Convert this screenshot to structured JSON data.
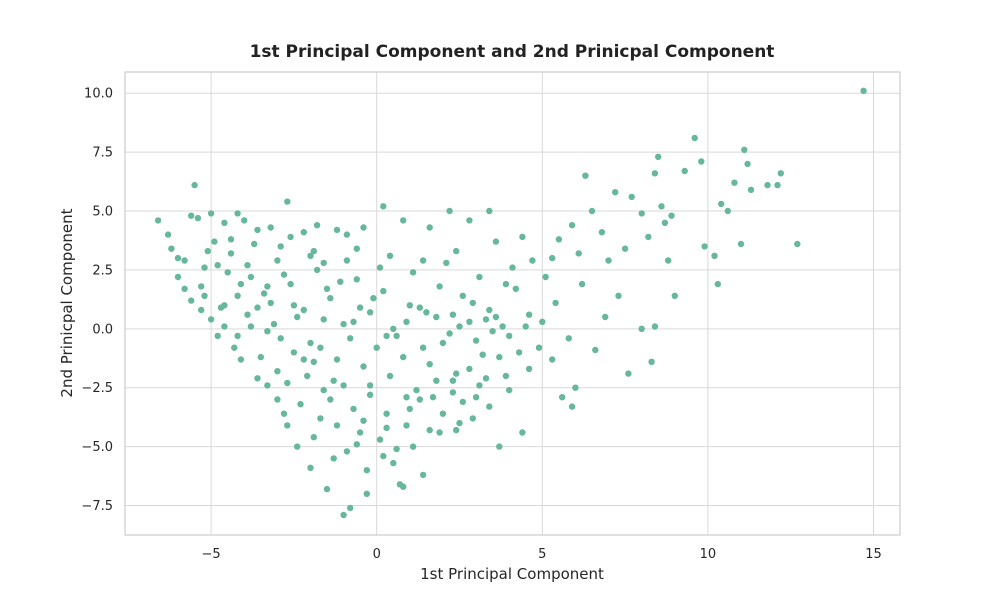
{
  "chart_data": {
    "type": "scatter",
    "title": "1st Principal Component and 2nd Prinicpal Component",
    "xlabel": "1st Principal Component",
    "ylabel": "2nd Prinicpal Component",
    "xlim": [
      -7.6,
      15.8
    ],
    "ylim": [
      -8.75,
      10.9
    ],
    "x_ticks": [
      -5,
      0,
      5,
      10,
      15
    ],
    "x_tick_labels": [
      "−5",
      "0",
      "5",
      "10",
      "15"
    ],
    "y_ticks": [
      -7.5,
      -5.0,
      -2.5,
      0.0,
      2.5,
      5.0,
      7.5,
      10.0
    ],
    "y_tick_labels": [
      "−7.5",
      "−5.0",
      "−2.5",
      "0.0",
      "2.5",
      "5.0",
      "7.5",
      "10.0"
    ],
    "grid": true,
    "legend": "none",
    "marker_color": "#66b79b",
    "series": [
      {
        "points": [
          [
            -6.6,
            4.6
          ],
          [
            -6.3,
            4.0
          ],
          [
            -6.2,
            3.4
          ],
          [
            -6.0,
            3.0
          ],
          [
            -5.5,
            6.1
          ],
          [
            -5.6,
            4.8
          ],
          [
            -5.4,
            4.7
          ],
          [
            -5.2,
            2.6
          ],
          [
            -5.0,
            4.9
          ],
          [
            -4.9,
            3.7
          ],
          [
            -4.6,
            4.5
          ],
          [
            -4.2,
            4.9
          ],
          [
            -4.0,
            4.6
          ],
          [
            -3.6,
            4.2
          ],
          [
            -3.2,
            4.3
          ],
          [
            -2.7,
            5.4
          ],
          [
            -2.2,
            4.1
          ],
          [
            -1.8,
            4.4
          ],
          [
            -1.2,
            4.2
          ],
          [
            -0.9,
            4.0
          ],
          [
            -0.4,
            4.3
          ],
          [
            0.2,
            5.2
          ],
          [
            0.8,
            4.6
          ],
          [
            1.6,
            4.3
          ],
          [
            2.2,
            5.0
          ],
          [
            2.8,
            4.6
          ],
          [
            3.4,
            5.0
          ],
          [
            -6.0,
            2.2
          ],
          [
            -5.8,
            1.7
          ],
          [
            -5.6,
            1.2
          ],
          [
            -5.3,
            1.8
          ],
          [
            -5.0,
            0.4
          ],
          [
            -4.7,
            0.9
          ],
          [
            -4.6,
            0.1
          ],
          [
            -4.3,
            -0.8
          ],
          [
            -4.2,
            -0.3
          ],
          [
            -3.9,
            0.6
          ],
          [
            -3.5,
            -1.2
          ],
          [
            -3.3,
            -0.1
          ],
          [
            -3.2,
            1.1
          ],
          [
            -3.0,
            -1.8
          ],
          [
            -2.7,
            -2.3
          ],
          [
            -2.5,
            -1.0
          ],
          [
            -2.3,
            -3.2
          ],
          [
            -2.1,
            -2.0
          ],
          [
            -1.9,
            -1.4
          ],
          [
            -1.7,
            -3.8
          ],
          [
            -1.6,
            -2.6
          ],
          [
            -1.4,
            -3.0
          ],
          [
            -1.2,
            -4.1
          ],
          [
            -1.0,
            -2.4
          ],
          [
            -0.9,
            -5.2
          ],
          [
            -0.7,
            -3.4
          ],
          [
            -0.5,
            -4.4
          ],
          [
            -0.3,
            -6.0
          ],
          [
            -0.2,
            -2.8
          ],
          [
            0.1,
            -4.7
          ],
          [
            0.3,
            -3.6
          ],
          [
            0.5,
            -5.7
          ],
          [
            0.7,
            -6.6
          ],
          [
            0.9,
            -4.1
          ],
          [
            1.1,
            -5.0
          ],
          [
            1.3,
            -3.0
          ],
          [
            1.6,
            -4.3
          ],
          [
            1.8,
            -2.2
          ],
          [
            2.0,
            -3.6
          ],
          [
            2.3,
            -2.7
          ],
          [
            2.5,
            -4.0
          ],
          [
            2.8,
            -1.7
          ],
          [
            3.1,
            -2.4
          ],
          [
            3.4,
            -3.3
          ],
          [
            3.7,
            -1.2
          ],
          [
            4.0,
            -2.6
          ],
          [
            4.3,
            -1.0
          ],
          [
            4.6,
            -1.7
          ],
          [
            -3.8,
            2.2
          ],
          [
            -3.4,
            1.5
          ],
          [
            -3.0,
            2.9
          ],
          [
            -2.6,
            1.9
          ],
          [
            -2.2,
            0.8
          ],
          [
            -1.8,
            2.5
          ],
          [
            -1.4,
            1.3
          ],
          [
            -1.0,
            0.2
          ],
          [
            -0.6,
            2.1
          ],
          [
            -0.2,
            0.7
          ],
          [
            0.2,
            1.6
          ],
          [
            0.6,
            -0.3
          ],
          [
            1.0,
            1.0
          ],
          [
            1.4,
            -0.8
          ],
          [
            1.8,
            0.5
          ],
          [
            2.2,
            -0.2
          ],
          [
            2.6,
            1.4
          ],
          [
            3.0,
            -0.5
          ],
          [
            3.4,
            0.8
          ],
          [
            3.8,
            0.1
          ],
          [
            4.2,
            1.7
          ],
          [
            4.6,
            0.6
          ],
          [
            5.0,
            0.3
          ],
          [
            5.4,
            1.1
          ],
          [
            5.8,
            -0.4
          ],
          [
            -4.4,
            3.2
          ],
          [
            -3.9,
            2.7
          ],
          [
            -2.9,
            3.5
          ],
          [
            -1.9,
            3.3
          ],
          [
            -0.9,
            2.9
          ],
          [
            0.1,
            2.6
          ],
          [
            1.1,
            2.4
          ],
          [
            2.1,
            2.8
          ],
          [
            3.1,
            2.2
          ],
          [
            4.1,
            2.6
          ],
          [
            5.1,
            2.2
          ],
          [
            5.5,
            3.8
          ],
          [
            5.9,
            4.4
          ],
          [
            6.1,
            3.2
          ],
          [
            6.3,
            6.5
          ],
          [
            6.5,
            5.0
          ],
          [
            6.8,
            4.1
          ],
          [
            7.0,
            2.9
          ],
          [
            7.2,
            5.8
          ],
          [
            7.5,
            3.4
          ],
          [
            7.7,
            5.6
          ],
          [
            8.0,
            4.9
          ],
          [
            8.2,
            3.9
          ],
          [
            8.4,
            6.6
          ],
          [
            8.5,
            7.3
          ],
          [
            8.6,
            5.2
          ],
          [
            8.7,
            4.5
          ],
          [
            8.9,
            4.8
          ],
          [
            9.3,
            6.7
          ],
          [
            9.6,
            8.1
          ],
          [
            9.8,
            7.1
          ],
          [
            9.9,
            3.5
          ],
          [
            10.2,
            3.1
          ],
          [
            10.4,
            5.3
          ],
          [
            10.6,
            5.0
          ],
          [
            10.8,
            6.2
          ],
          [
            11.0,
            3.6
          ],
          [
            11.1,
            7.6
          ],
          [
            11.2,
            7.0
          ],
          [
            11.3,
            5.9
          ],
          [
            11.8,
            6.1
          ],
          [
            12.1,
            6.1
          ],
          [
            12.2,
            6.6
          ],
          [
            12.7,
            3.6
          ],
          [
            14.7,
            10.1
          ],
          [
            6.2,
            1.9
          ],
          [
            6.6,
            -0.9
          ],
          [
            6.9,
            0.5
          ],
          [
            7.3,
            1.4
          ],
          [
            7.6,
            -1.9
          ],
          [
            8.0,
            0.0
          ],
          [
            8.3,
            -1.4
          ],
          [
            8.4,
            0.1
          ],
          [
            8.8,
            2.9
          ],
          [
            9.0,
            1.4
          ],
          [
            10.3,
            1.9
          ],
          [
            5.6,
            -2.9
          ],
          [
            5.9,
            -3.3
          ],
          [
            6.0,
            -2.5
          ],
          [
            5.3,
            -1.3
          ],
          [
            4.9,
            -0.8
          ],
          [
            4.4,
            -4.4
          ],
          [
            3.7,
            -5.0
          ],
          [
            2.4,
            -4.3
          ],
          [
            1.4,
            -6.2
          ],
          [
            0.8,
            -6.7
          ],
          [
            0.2,
            -5.4
          ],
          [
            -0.3,
            -7.0
          ],
          [
            -0.8,
            -7.6
          ],
          [
            -1.0,
            -7.9
          ],
          [
            -1.5,
            -6.8
          ],
          [
            -2.0,
            -5.9
          ],
          [
            -2.4,
            -5.0
          ],
          [
            -2.7,
            -4.1
          ],
          [
            -3.0,
            -3.0
          ],
          [
            -3.6,
            -2.1
          ],
          [
            -4.1,
            -1.3
          ],
          [
            -4.8,
            -0.3
          ],
          [
            -5.3,
            0.8
          ],
          [
            -4.8,
            2.7
          ],
          [
            -4.1,
            1.9
          ],
          [
            -3.6,
            0.9
          ],
          [
            -3.1,
            0.2
          ],
          [
            -2.4,
            0.5
          ],
          [
            -2.0,
            -0.6
          ],
          [
            -1.6,
            0.4
          ],
          [
            -1.2,
            -1.3
          ],
          [
            -0.8,
            -0.4
          ],
          [
            -0.4,
            -1.6
          ],
          [
            0.0,
            -0.8
          ],
          [
            0.4,
            -2.0
          ],
          [
            0.8,
            -1.2
          ],
          [
            1.2,
            -2.6
          ],
          [
            1.6,
            -1.5
          ],
          [
            2.0,
            -0.6
          ],
          [
            2.4,
            -1.9
          ],
          [
            2.8,
            0.3
          ],
          [
            3.2,
            -1.1
          ],
          [
            3.6,
            0.5
          ],
          [
            4.0,
            -0.3
          ],
          [
            -5.8,
            2.9
          ],
          [
            -5.1,
            3.3
          ],
          [
            -4.5,
            2.4
          ],
          [
            -3.7,
            3.6
          ],
          [
            -2.8,
            2.3
          ],
          [
            -2.0,
            3.1
          ],
          [
            -1.1,
            2.0
          ],
          [
            -0.1,
            1.3
          ],
          [
            0.9,
            0.3
          ],
          [
            1.9,
            1.8
          ],
          [
            2.9,
            1.1
          ],
          [
            3.9,
            1.9
          ],
          [
            4.7,
            2.9
          ],
          [
            5.3,
            3.0
          ],
          [
            -4.2,
            1.4
          ],
          [
            -3.3,
            1.8
          ],
          [
            -2.5,
            1.0
          ],
          [
            -1.5,
            1.7
          ],
          [
            -0.5,
            0.9
          ],
          [
            0.5,
            0.0
          ],
          [
            1.5,
            0.7
          ],
          [
            2.5,
            0.1
          ],
          [
            3.5,
            -0.1
          ],
          [
            4.5,
            0.1
          ],
          [
            -1.3,
            -5.5
          ],
          [
            -0.6,
            -4.9
          ],
          [
            0.3,
            -4.2
          ],
          [
            1.0,
            -3.4
          ],
          [
            1.7,
            -2.9
          ],
          [
            2.6,
            -3.1
          ],
          [
            3.3,
            -2.1
          ],
          [
            -1.9,
            -4.6
          ],
          [
            -2.8,
            -3.6
          ],
          [
            -0.4,
            -3.9
          ],
          [
            0.6,
            -5.1
          ],
          [
            1.9,
            -4.4
          ],
          [
            2.9,
            -3.8
          ],
          [
            3.9,
            -2.0
          ],
          [
            -3.3,
            -2.4
          ],
          [
            -2.2,
            -1.3
          ],
          [
            -1.3,
            -2.2
          ],
          [
            -0.2,
            -2.4
          ],
          [
            0.9,
            -2.9
          ],
          [
            2.3,
            -2.2
          ],
          [
            3.0,
            -2.9
          ],
          [
            -4.6,
            1.0
          ],
          [
            -3.8,
            0.1
          ],
          [
            -2.9,
            -0.4
          ],
          [
            -1.7,
            -0.8
          ],
          [
            -0.7,
            0.3
          ],
          [
            0.3,
            -0.3
          ],
          [
            1.3,
            0.9
          ],
          [
            2.3,
            0.6
          ],
          [
            3.3,
            0.4
          ],
          [
            -2.6,
            3.9
          ],
          [
            -1.6,
            2.8
          ],
          [
            -0.6,
            3.4
          ],
          [
            0.4,
            3.1
          ],
          [
            1.4,
            2.9
          ],
          [
            2.4,
            3.3
          ],
          [
            3.6,
            3.7
          ],
          [
            4.4,
            3.9
          ],
          [
            -5.2,
            1.4
          ],
          [
            -4.4,
            3.8
          ]
        ]
      }
    ]
  }
}
